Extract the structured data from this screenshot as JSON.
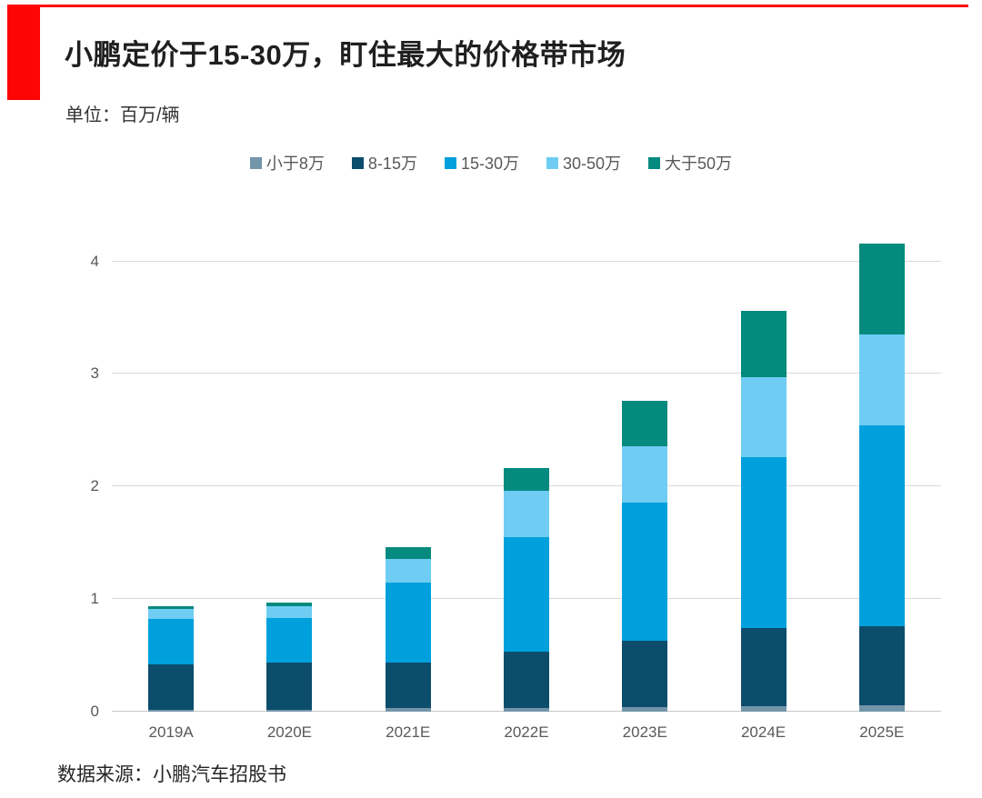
{
  "page": {
    "title": "小鹏定价于15-30万，盯住最大的价格带市场",
    "unit_label": "单位：百万/辆",
    "source": "数据来源：小鹏汽车招股书",
    "accent_color": "#fb0505"
  },
  "chart_data": {
    "type": "bar",
    "stacked": true,
    "title": "小鹏定价于15-30万，盯住最大的价格带市场",
    "unit": "百万/辆",
    "categories": [
      "2019A",
      "2020E",
      "2021E",
      "2022E",
      "2023E",
      "2024E",
      "2025E"
    ],
    "series": [
      {
        "name": "小于8万",
        "color": "#7295a9",
        "values": [
          0.02,
          0.02,
          0.03,
          0.03,
          0.04,
          0.05,
          0.06
        ]
      },
      {
        "name": "8-15万",
        "color": "#0c4d6c",
        "values": [
          0.4,
          0.42,
          0.41,
          0.5,
          0.59,
          0.69,
          0.7
        ]
      },
      {
        "name": "15-30万",
        "color": "#00a0dc",
        "values": [
          0.4,
          0.39,
          0.71,
          1.02,
          1.23,
          1.52,
          1.78
        ]
      },
      {
        "name": "30-50万",
        "color": "#6fcdf3",
        "values": [
          0.09,
          0.11,
          0.21,
          0.41,
          0.5,
          0.71,
          0.81
        ]
      },
      {
        "name": "大于50万",
        "color": "#048a7e",
        "values": [
          0.03,
          0.03,
          0.1,
          0.2,
          0.4,
          0.59,
          0.81
        ]
      }
    ],
    "totals": [
      0.94,
      0.97,
      1.46,
      2.16,
      2.76,
      3.56,
      4.16
    ],
    "yticks": [
      0,
      1,
      2,
      3,
      4
    ],
    "ylim": [
      0,
      4.23
    ],
    "grid": "horizontal",
    "legend_position": "top",
    "gridline_color": "#d9d9d9",
    "axis_label_color": "#595959"
  }
}
